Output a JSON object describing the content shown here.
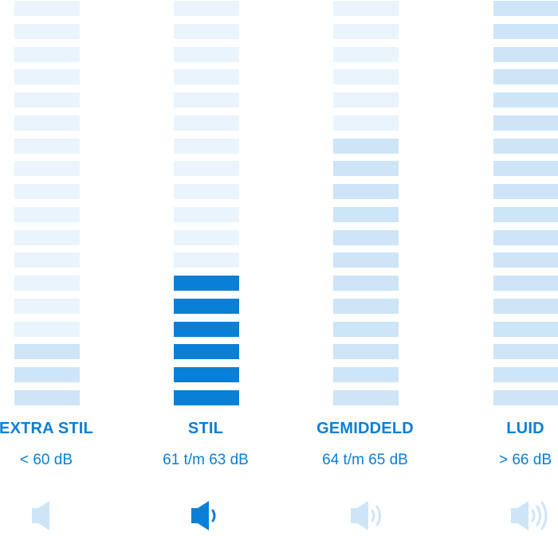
{
  "levels": [
    {
      "label": "EXTRA STIL",
      "range": "< 60 dB",
      "icon": "speaker-mute-icon",
      "waves": 0,
      "active": false,
      "mid_segments": 3
    },
    {
      "label": "STIL",
      "range": "61 t/m 63 dB",
      "icon": "speaker-one-wave-icon",
      "waves": 1,
      "active": true,
      "on_segments": 6
    },
    {
      "label": "GEMIDDELD",
      "range": "64 t/m 65 dB",
      "icon": "speaker-two-waves-icon",
      "waves": 2,
      "active": false,
      "mid_segments": 12
    },
    {
      "label": "LUID",
      "range": "> 66 dB",
      "icon": "speaker-three-waves-icon",
      "waves": 3,
      "active": false,
      "mid_segments": 18
    }
  ],
  "segments_per_meter": 18,
  "colors": {
    "accent": "#0a7fd6",
    "segment_off": "#eaf4fc",
    "segment_mid": "#cde5f7",
    "icon_inactive": "#cde5f7"
  }
}
